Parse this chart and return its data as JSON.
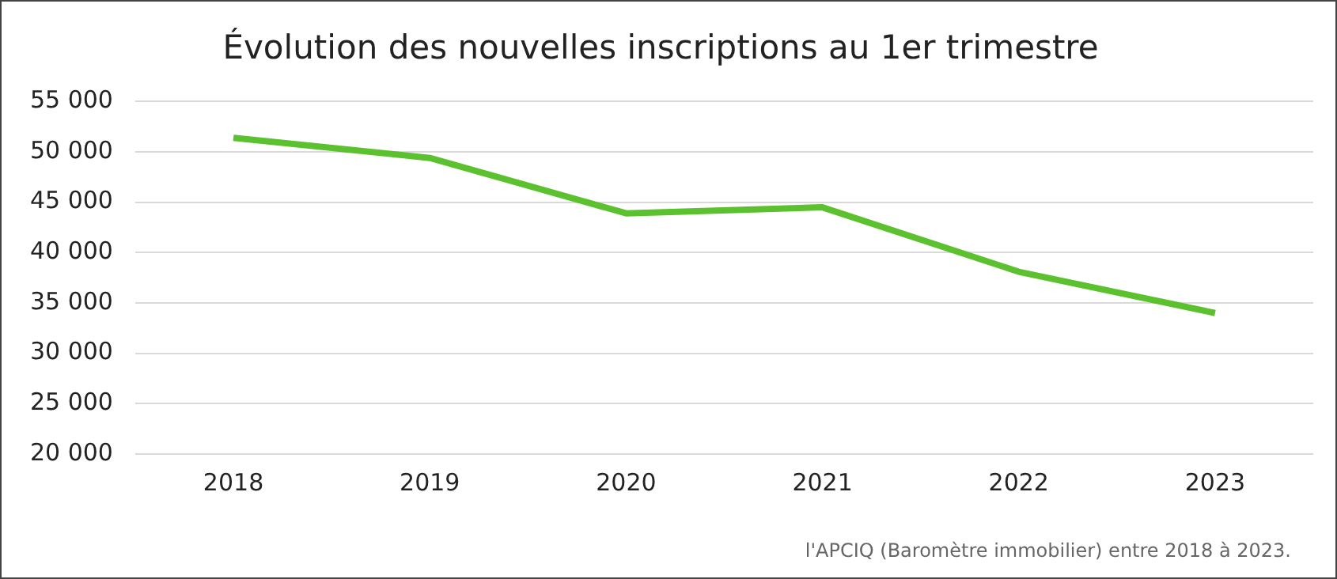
{
  "chart_data": {
    "type": "line",
    "title": "Évolution des nouvelles inscriptions au 1er trimestre",
    "categories": [
      "2018",
      "2019",
      "2020",
      "2021",
      "2022",
      "2023"
    ],
    "series": [
      {
        "color": "#5cc12e",
        "values": [
          51400,
          49400,
          43900,
          44500,
          38100,
          34000
        ]
      }
    ],
    "ylim": [
      20000,
      55000
    ],
    "yticks": [
      {
        "value": 20000,
        "label": "20 000"
      },
      {
        "value": 25000,
        "label": "25 000"
      },
      {
        "value": 30000,
        "label": "30 000"
      },
      {
        "value": 35000,
        "label": "35 000"
      },
      {
        "value": 40000,
        "label": "40 000"
      },
      {
        "value": 45000,
        "label": "45 000"
      },
      {
        "value": 50000,
        "label": "50 000"
      },
      {
        "value": 55000,
        "label": "55 000"
      }
    ],
    "grid": "y",
    "legend": false,
    "marker": "none",
    "line_style": "solid",
    "annotations": [
      "l'APCIQ (Baromètre immobilier) entre 2018 à 2023."
    ]
  }
}
